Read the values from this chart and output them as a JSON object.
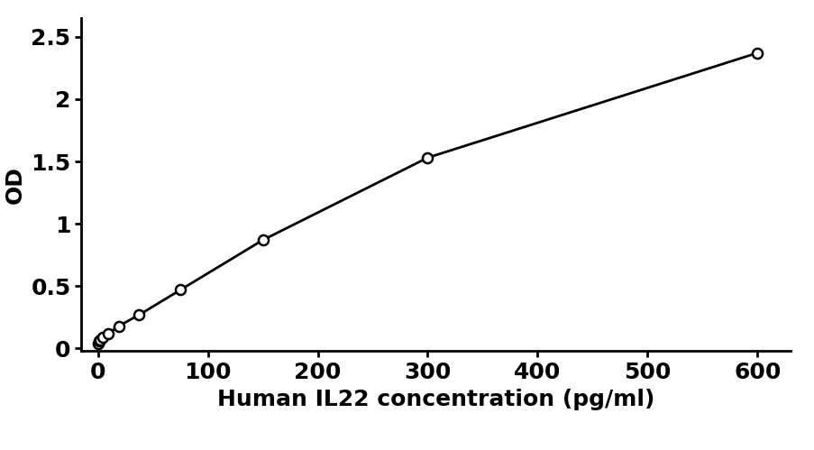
{
  "x_data": [
    0,
    1.2,
    2.3,
    4.7,
    9.4,
    18.75,
    37.5,
    75,
    150,
    300,
    600
  ],
  "y_data": [
    0.04,
    0.06,
    0.07,
    0.09,
    0.12,
    0.18,
    0.27,
    0.47,
    0.87,
    1.53,
    2.37
  ],
  "xlabel": "Human IL22 concentration (pg/ml)",
  "ylabel": "OD",
  "xlim": [
    -15,
    630
  ],
  "ylim": [
    -0.02,
    2.65
  ],
  "yticks": [
    0,
    0.5,
    1,
    1.5,
    2,
    2.5
  ],
  "xticks": [
    0,
    100,
    200,
    300,
    400,
    500,
    600
  ],
  "line_color": "#000000",
  "marker_color": "#000000",
  "background_color": "#ffffff",
  "label_fontsize": 18,
  "tick_fontsize": 18
}
